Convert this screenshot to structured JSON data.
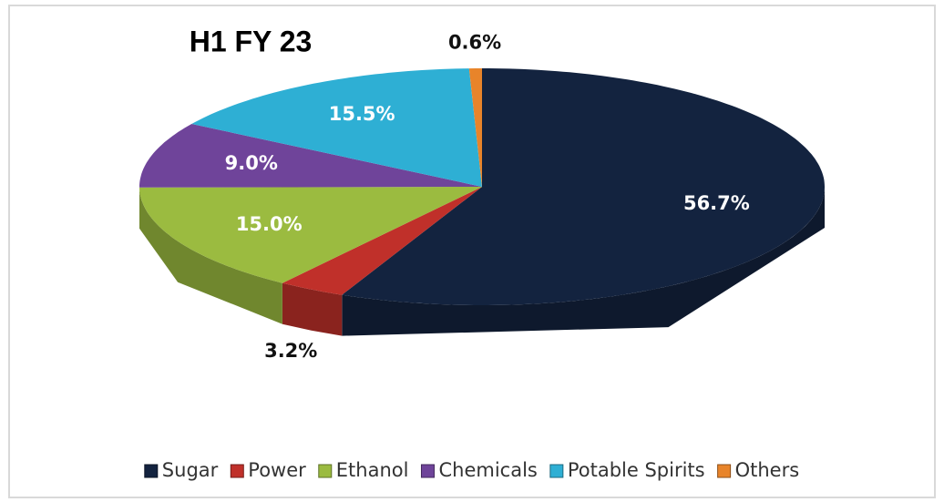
{
  "chart_data": {
    "type": "pie",
    "title": "H1 FY 23",
    "labels": [
      "Sugar",
      "Power",
      "Ethanol",
      "Chemicals",
      "Potable Spirits",
      "Others"
    ],
    "values": [
      56.7,
      3.2,
      15.0,
      9.0,
      15.5,
      0.6
    ],
    "value_labels": [
      "56.7%",
      "3.2%",
      "15.0%",
      "9.0%",
      "15.5%",
      "0.6%"
    ],
    "colors": [
      "#13233f",
      "#c0302a",
      "#9bbb40",
      "#6f449a",
      "#2eafd4",
      "#e8842a"
    ],
    "legend": "bottom"
  }
}
